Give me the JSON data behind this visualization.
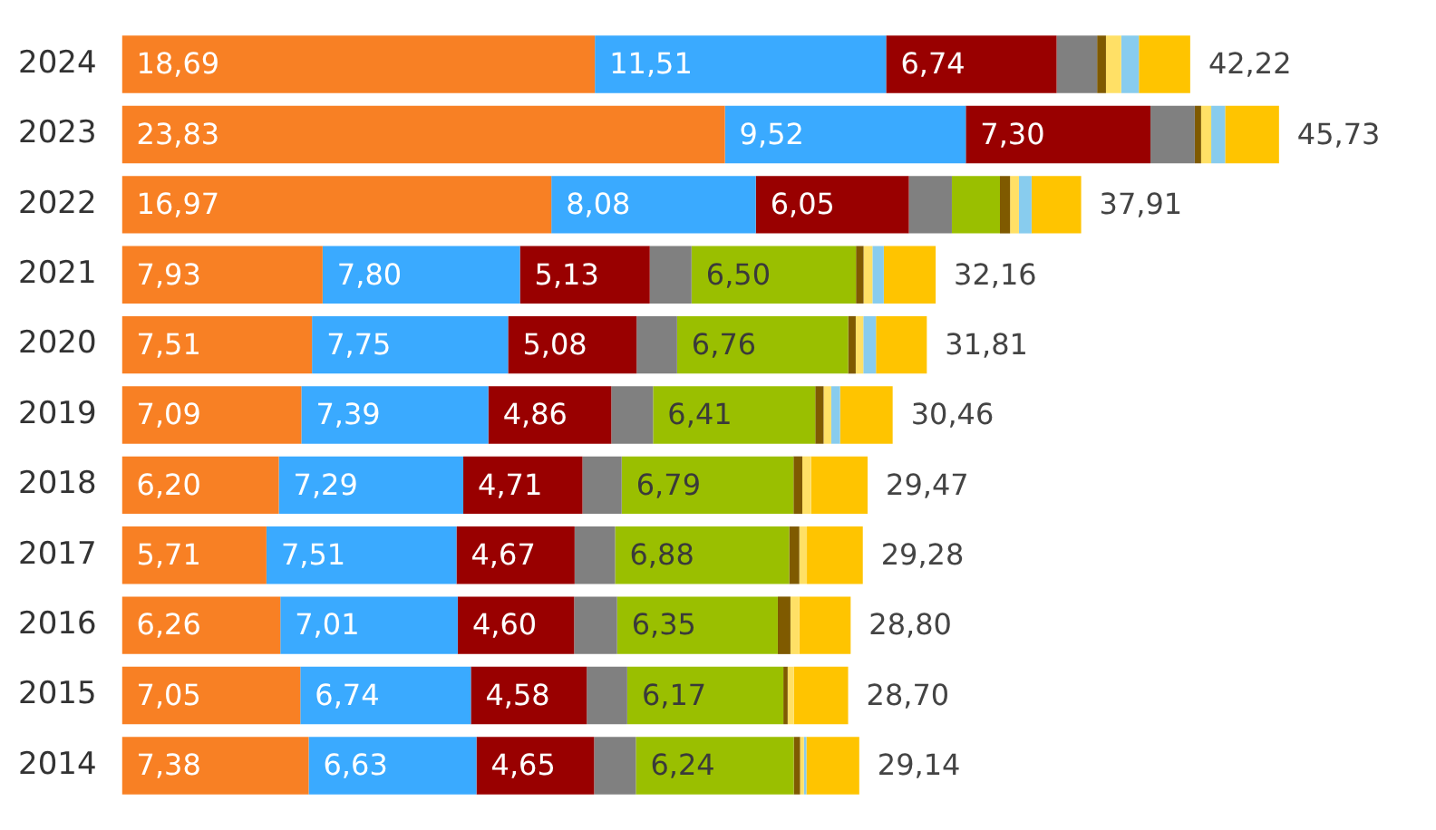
{
  "chart_data": {
    "type": "bar",
    "orientation": "horizontal",
    "stacked": true,
    "legend": false,
    "tick_labels": "y",
    "categories": [
      "2024",
      "2023",
      "2022",
      "2021",
      "2020",
      "2019",
      "2018",
      "2017",
      "2016",
      "2015",
      "2014"
    ],
    "series": [
      {
        "color": "#f88024",
        "values": [
          18.69,
          23.83,
          16.97,
          7.93,
          7.51,
          7.09,
          6.2,
          5.71,
          6.26,
          7.05,
          7.38
        ],
        "value_labels": [
          "18,69",
          "23,83",
          "16,97",
          "7,93",
          "7,51",
          "7,09",
          "6,20",
          "5,71",
          "6,26",
          "7,05",
          "7,38"
        ]
      },
      {
        "color": "#3aaaff",
        "values": [
          11.51,
          9.52,
          8.08,
          7.8,
          7.75,
          7.39,
          7.29,
          7.51,
          7.01,
          6.74,
          6.63
        ],
        "value_labels": [
          "11,51",
          "9,52",
          "8,08",
          "7,80",
          "7,75",
          "7,39",
          "7,29",
          "7,51",
          "7,01",
          "6,74",
          "6,63"
        ]
      },
      {
        "color": "#990000",
        "values": [
          6.74,
          7.3,
          6.05,
          5.13,
          5.08,
          4.86,
          4.71,
          4.67,
          4.6,
          4.58,
          4.65
        ],
        "value_labels": [
          "6,74",
          "7,30",
          "6,05",
          "5,13",
          "5,08",
          "4,86",
          "4,71",
          "4,67",
          "4,60",
          "4,58",
          "4,65"
        ]
      },
      {
        "color": "#808080",
        "values": [
          1.6,
          1.75,
          1.7,
          1.65,
          1.6,
          1.65,
          1.55,
          1.6,
          1.7,
          1.6,
          1.65
        ]
      },
      {
        "color": "#9abf00",
        "values": [
          null,
          null,
          1.9,
          6.5,
          6.76,
          6.41,
          6.79,
          6.88,
          6.35,
          6.17,
          6.24
        ],
        "value_labels": [
          null,
          null,
          null,
          "6,50",
          "6,76",
          "6,41",
          "6,79",
          "6,88",
          "6,35",
          "6,17",
          "6,24"
        ]
      },
      {
        "color": "#7f5a00",
        "values": [
          0.35,
          0.25,
          0.4,
          0.3,
          0.3,
          0.33,
          0.35,
          0.4,
          0.5,
          0.17,
          0.25
        ]
      },
      {
        "color": "#ffe066",
        "values": [
          0.6,
          0.4,
          0.35,
          0.35,
          0.3,
          0.3,
          0.35,
          0.3,
          0.35,
          0.25,
          0.15
        ]
      },
      {
        "color": "#88ccee",
        "values": [
          0.7,
          0.55,
          0.5,
          0.45,
          0.5,
          0.35,
          null,
          null,
          null,
          null,
          0.1
        ]
      },
      {
        "color": "#ffc400",
        "values": [
          2.03,
          2.13,
          1.96,
          2.05,
          2.01,
          2.08,
          2.23,
          2.21,
          2.03,
          2.14,
          2.09
        ]
      }
    ],
    "totals": [
      "42,22",
      "45,73",
      "37,91",
      "32,16",
      "31,81",
      "30,46",
      "29,47",
      "29,28",
      "28,80",
      "28,70",
      "29,14"
    ]
  }
}
